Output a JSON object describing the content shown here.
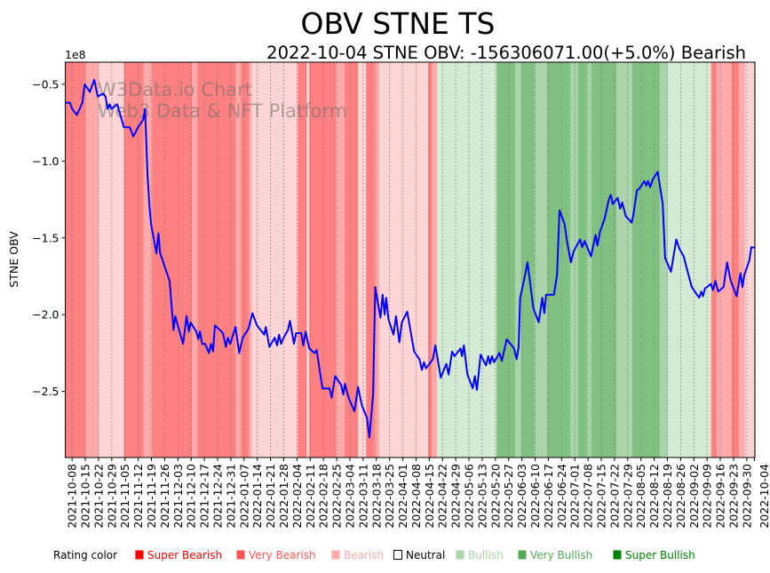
{
  "chart_data": {
    "type": "line",
    "title": "OBV STNE TS",
    "subtitle": "2022-10-04 STNE OBV: -156306071.00(+5.0%) Bearish",
    "watermark": [
      "W3Data.io Chart",
      "Web3 Data & NFT Platform"
    ],
    "ylabel": "STNE OBV",
    "y_offset_label": "1e8",
    "ylim": [
      -2.93,
      -0.356
    ],
    "yticks": [
      -0.5,
      -1.0,
      -1.5,
      -2.0,
      -2.5
    ],
    "ytick_labels": [
      "−0.5",
      "−1.0",
      "−1.5",
      "−2.0",
      "−2.5"
    ],
    "x_origin_date": "2021-10-08",
    "x_unit": "days since origin",
    "xlim_days": [
      -3.6,
      361.3
    ],
    "xtick_days": [
      0,
      7,
      14,
      21,
      28,
      35,
      42,
      49,
      56,
      63,
      70,
      77,
      84,
      91,
      98,
      105,
      112,
      119,
      126,
      133,
      140,
      147,
      154,
      161,
      168,
      175,
      182,
      189,
      196,
      203,
      210,
      217,
      224,
      231,
      238,
      245,
      252,
      259,
      266,
      273,
      280,
      287,
      294,
      301,
      308,
      315,
      322,
      329,
      336,
      343,
      350,
      357,
      361
    ],
    "xtick_labels": [
      "2021-10-08",
      "2021-10-15",
      "2021-10-22",
      "2021-10-29",
      "2021-11-05",
      "2021-11-12",
      "2021-11-19",
      "2021-11-26",
      "2021-12-03",
      "2021-12-10",
      "2021-12-17",
      "2021-12-24",
      "2021-12-31",
      "2022-01-07",
      "2022-01-14",
      "2022-01-21",
      "2022-01-28",
      "2022-02-04",
      "2022-02-11",
      "2022-02-18",
      "2022-02-25",
      "2022-03-04",
      "2022-03-11",
      "2022-03-18",
      "2022-03-25",
      "2022-04-01",
      "2022-04-08",
      "2022-04-15",
      "2022-04-22",
      "2022-04-29",
      "2022-05-06",
      "2022-05-13",
      "2022-05-20",
      "2022-05-27",
      "2022-06-03",
      "2022-06-10",
      "2022-06-17",
      "2022-06-24",
      "2022-07-01",
      "2022-07-08",
      "2022-07-15",
      "2022-07-22",
      "2022-07-29",
      "2022-08-05",
      "2022-08-12",
      "2022-08-19",
      "2022-08-26",
      "2022-09-02",
      "2022-09-09",
      "2022-09-16",
      "2022-09-23",
      "2022-09-30",
      "2022-10-04"
    ],
    "grid": "vertical dotted at x ticks",
    "series": [
      {
        "name": "STNE OBV",
        "color": "#0000ff",
        "points": [
          [
            -3.6,
            -0.62
          ],
          [
            -1.1,
            -0.62
          ],
          [
            0,
            -0.66
          ],
          [
            2.6,
            -0.7
          ],
          [
            5.4,
            -0.62
          ],
          [
            6.7,
            -0.5
          ],
          [
            9.4,
            -0.55
          ],
          [
            11.7,
            -0.47
          ],
          [
            13.6,
            -0.58
          ],
          [
            16.4,
            -0.56
          ],
          [
            17.7,
            -0.58
          ],
          [
            18.8,
            -0.66
          ],
          [
            19.9,
            -0.63
          ],
          [
            20.8,
            -0.66
          ],
          [
            23.9,
            -0.63
          ],
          [
            27.4,
            -0.78
          ],
          [
            30.5,
            -0.78
          ],
          [
            32.4,
            -0.84
          ],
          [
            34.9,
            -0.78
          ],
          [
            37.6,
            -0.73
          ],
          [
            38.6,
            -0.66
          ],
          [
            39.9,
            -1.09
          ],
          [
            41.0,
            -1.3
          ],
          [
            41.8,
            -1.41
          ],
          [
            44.6,
            -1.6
          ],
          [
            45.7,
            -1.47
          ],
          [
            46.6,
            -1.6
          ],
          [
            51.6,
            -1.78
          ],
          [
            53.7,
            -2.1
          ],
          [
            54.6,
            -2.01
          ],
          [
            58.7,
            -2.19
          ],
          [
            60.6,
            -2.01
          ],
          [
            61.8,
            -2.11
          ],
          [
            62.7,
            -2.05
          ],
          [
            65.7,
            -2.11
          ],
          [
            66.8,
            -2.16
          ],
          [
            67.7,
            -2.11
          ],
          [
            68.8,
            -2.19
          ],
          [
            70.4,
            -2.19
          ],
          [
            72.4,
            -2.25
          ],
          [
            73.5,
            -2.19
          ],
          [
            74.6,
            -2.24
          ],
          [
            75.6,
            -2.07
          ],
          [
            79.0,
            -2.11
          ],
          [
            79.8,
            -2.12
          ],
          [
            81.4,
            -2.21
          ],
          [
            82.4,
            -2.15
          ],
          [
            83.7,
            -2.19
          ],
          [
            86.5,
            -2.08
          ],
          [
            88.4,
            -2.25
          ],
          [
            90.3,
            -2.15
          ],
          [
            93.4,
            -2.09
          ],
          [
            95.4,
            -1.99
          ],
          [
            97.8,
            -2.07
          ],
          [
            101.7,
            -2.13
          ],
          [
            102.5,
            -2.08
          ],
          [
            104.4,
            -2.21
          ],
          [
            107.2,
            -2.15
          ],
          [
            108.5,
            -2.2
          ],
          [
            109.5,
            -2.13
          ],
          [
            110.6,
            -2.19
          ],
          [
            111.9,
            -2.15
          ],
          [
            114.2,
            -2.1
          ],
          [
            115.3,
            -2.04
          ],
          [
            117.4,
            -2.19
          ],
          [
            118.5,
            -2.12
          ],
          [
            121.3,
            -2.12
          ],
          [
            122.3,
            -2.2
          ],
          [
            123.6,
            -2.11
          ],
          [
            125.5,
            -2.22
          ],
          [
            128.3,
            -2.25
          ],
          [
            129.4,
            -2.23
          ],
          [
            132.5,
            -2.48
          ],
          [
            136.2,
            -2.48
          ],
          [
            137.4,
            -2.54
          ],
          [
            139.2,
            -2.4
          ],
          [
            142.4,
            -2.46
          ],
          [
            143.5,
            -2.52
          ],
          [
            144.4,
            -2.45
          ],
          [
            146.3,
            -2.54
          ],
          [
            149.4,
            -2.63
          ],
          [
            151.3,
            -2.47
          ],
          [
            153.3,
            -2.59
          ],
          [
            156.0,
            -2.67
          ],
          [
            157.3,
            -2.8
          ],
          [
            159.3,
            -2.52
          ],
          [
            160.4,
            -1.82
          ],
          [
            163.2,
            -2.02
          ],
          [
            164.3,
            -1.87
          ],
          [
            165.4,
            -2.0
          ],
          [
            166.2,
            -1.89
          ],
          [
            167.4,
            -2.03
          ],
          [
            170.1,
            -2.13
          ],
          [
            171.4,
            -2.01
          ],
          [
            173.2,
            -2.18
          ],
          [
            174.5,
            -2.05
          ],
          [
            177.3,
            -1.98
          ],
          [
            181.0,
            -2.24
          ],
          [
            183.8,
            -2.29
          ],
          [
            185.1,
            -2.36
          ],
          [
            186.2,
            -2.31
          ],
          [
            187.3,
            -2.35
          ],
          [
            190.9,
            -2.29
          ],
          [
            192.2,
            -2.2
          ],
          [
            195.1,
            -2.41
          ],
          [
            198.0,
            -2.32
          ],
          [
            199.2,
            -2.39
          ],
          [
            201.1,
            -2.24
          ],
          [
            202.4,
            -2.27
          ],
          [
            205.5,
            -2.22
          ],
          [
            206.3,
            -2.27
          ],
          [
            207.3,
            -2.2
          ],
          [
            209.2,
            -2.39
          ],
          [
            212.0,
            -2.48
          ],
          [
            213.1,
            -2.4
          ],
          [
            214.2,
            -2.49
          ],
          [
            216.2,
            -2.26
          ],
          [
            219.0,
            -2.33
          ],
          [
            220.2,
            -2.27
          ],
          [
            221.1,
            -2.32
          ],
          [
            222.2,
            -2.27
          ],
          [
            223.3,
            -2.31
          ],
          [
            226.1,
            -2.25
          ],
          [
            227.4,
            -2.3
          ],
          [
            230.0,
            -2.16
          ],
          [
            233.9,
            -2.22
          ],
          [
            235.2,
            -2.29
          ],
          [
            236.3,
            -2.21
          ],
          [
            237.1,
            -1.89
          ],
          [
            239.4,
            -1.76
          ],
          [
            241.0,
            -1.66
          ],
          [
            244.1,
            -1.96
          ],
          [
            246.9,
            -2.05
          ],
          [
            248.8,
            -1.89
          ],
          [
            249.9,
            -1.99
          ],
          [
            250.8,
            -1.87
          ],
          [
            255.0,
            -1.87
          ],
          [
            256.6,
            -1.74
          ],
          [
            257.9,
            -1.32
          ],
          [
            260.6,
            -1.41
          ],
          [
            261.8,
            -1.52
          ],
          [
            264.0,
            -1.66
          ],
          [
            265.3,
            -1.59
          ],
          [
            268.8,
            -1.51
          ],
          [
            269.9,
            -1.56
          ],
          [
            271.2,
            -1.52
          ],
          [
            274.6,
            -1.62
          ],
          [
            277.0,
            -1.48
          ],
          [
            278.0,
            -1.55
          ],
          [
            279.3,
            -1.46
          ],
          [
            281.7,
            -1.38
          ],
          [
            284.0,
            -1.25
          ],
          [
            285.1,
            -1.22
          ],
          [
            286.1,
            -1.28
          ],
          [
            288.7,
            -1.24
          ],
          [
            290.0,
            -1.31
          ],
          [
            291.1,
            -1.27
          ],
          [
            293.0,
            -1.36
          ],
          [
            296.1,
            -1.4
          ],
          [
            297.0,
            -1.35
          ],
          [
            298.9,
            -1.19
          ],
          [
            300.1,
            -1.18
          ],
          [
            302.8,
            -1.13
          ],
          [
            303.8,
            -1.16
          ],
          [
            304.7,
            -1.13
          ],
          [
            305.9,
            -1.17
          ],
          [
            307.2,
            -1.12
          ],
          [
            309.9,
            -1.07
          ],
          [
            312.5,
            -1.28
          ],
          [
            313.8,
            -1.63
          ],
          [
            316.9,
            -1.72
          ],
          [
            319.7,
            -1.51
          ],
          [
            321.3,
            -1.57
          ],
          [
            323.6,
            -1.62
          ],
          [
            325.5,
            -1.71
          ],
          [
            327.9,
            -1.82
          ],
          [
            331.8,
            -1.89
          ],
          [
            332.9,
            -1.85
          ],
          [
            333.8,
            -1.88
          ],
          [
            334.9,
            -1.83
          ],
          [
            338.0,
            -1.8
          ],
          [
            339.1,
            -1.84
          ],
          [
            340.4,
            -1.78
          ],
          [
            341.9,
            -1.85
          ],
          [
            344.7,
            -1.82
          ],
          [
            346.6,
            -1.66
          ],
          [
            348.5,
            -1.78
          ],
          [
            351.6,
            -1.88
          ],
          [
            353.7,
            -1.73
          ],
          [
            354.7,
            -1.82
          ],
          [
            355.7,
            -1.74
          ],
          [
            358.3,
            -1.65
          ],
          [
            359.4,
            -1.56
          ],
          [
            361.3,
            -1.563
          ]
        ]
      }
    ],
    "rating_bands": [
      [
        -3.6,
        7.2,
        "super_bearish"
      ],
      [
        7.2,
        14.2,
        "very_bearish"
      ],
      [
        14.2,
        27.4,
        "bearish"
      ],
      [
        27.4,
        37.7,
        "super_bearish"
      ],
      [
        37.7,
        42.4,
        "very_bearish"
      ],
      [
        42.4,
        63.5,
        "super_bearish"
      ],
      [
        63.5,
        66.3,
        "very_bearish"
      ],
      [
        66.3,
        86.5,
        "super_bearish"
      ],
      [
        86.5,
        89.4,
        "very_bearish"
      ],
      [
        89.4,
        93.6,
        "super_bearish"
      ],
      [
        93.6,
        95.0,
        "very_bearish"
      ],
      [
        95.0,
        119.4,
        "bearish"
      ],
      [
        119.4,
        124.1,
        "super_bearish"
      ],
      [
        124.1,
        125.5,
        "bearish"
      ],
      [
        125.5,
        139.6,
        "super_bearish"
      ],
      [
        139.6,
        144.3,
        "very_bearish"
      ],
      [
        144.3,
        151.3,
        "super_bearish"
      ],
      [
        151.3,
        155.6,
        "bearish"
      ],
      [
        155.6,
        160.3,
        "super_bearish"
      ],
      [
        160.3,
        162.6,
        "very_bearish"
      ],
      [
        162.6,
        188.4,
        "bearish"
      ],
      [
        188.4,
        190.3,
        "super_bearish"
      ],
      [
        190.3,
        193.1,
        "very_bearish"
      ],
      [
        193.1,
        224.6,
        "bullish"
      ],
      [
        224.6,
        234.4,
        "super_bullish"
      ],
      [
        234.4,
        237.7,
        "very_bullish"
      ],
      [
        237.7,
        244.7,
        "super_bullish"
      ],
      [
        244.7,
        251.3,
        "very_bullish"
      ],
      [
        251.3,
        263.5,
        "super_bullish"
      ],
      [
        263.5,
        267.7,
        "very_bullish"
      ],
      [
        267.7,
        272.4,
        "super_bullish"
      ],
      [
        272.4,
        274.8,
        "very_bullish"
      ],
      [
        274.8,
        287.9,
        "super_bullish"
      ],
      [
        287.9,
        296.4,
        "very_bullish"
      ],
      [
        296.4,
        310.9,
        "super_bullish"
      ],
      [
        310.9,
        315.1,
        "very_bullish"
      ],
      [
        315.1,
        338.2,
        "bullish"
      ],
      [
        338.2,
        341.0,
        "super_bearish"
      ],
      [
        341.0,
        349.0,
        "very_bearish"
      ],
      [
        349.0,
        352.8,
        "super_bearish"
      ],
      [
        352.8,
        356.0,
        "very_bearish"
      ],
      [
        356.0,
        361.3,
        "bearish"
      ]
    ],
    "band_colors": {
      "super_bearish": "#ff8080",
      "very_bearish": "#ffaaaa",
      "bearish": "#ffd5d5",
      "bullish": "#d5ead5",
      "very_bullish": "#aad5aa",
      "super_bullish": "#80c080"
    },
    "legend": {
      "title": "Rating color",
      "placement": "bottom",
      "items": [
        {
          "label": "Super Bearish",
          "color": "#ff0000",
          "text_color": "#ff0000"
        },
        {
          "label": "Very Bearish",
          "color": "#ff5555",
          "text_color": "#ff5555"
        },
        {
          "label": "Bearish",
          "color": "#ffaaaa",
          "text_color": "#ffaaaa"
        },
        {
          "label": "Neutral",
          "color": "#ffffff",
          "text_color": "#000000"
        },
        {
          "label": "Bullish",
          "color": "#aad4aa",
          "text_color": "#aad4aa"
        },
        {
          "label": "Very Bullish",
          "color": "#55aa55",
          "text_color": "#55aa55"
        },
        {
          "label": "Super Bullish",
          "color": "#008000",
          "text_color": "#008000"
        }
      ]
    }
  }
}
